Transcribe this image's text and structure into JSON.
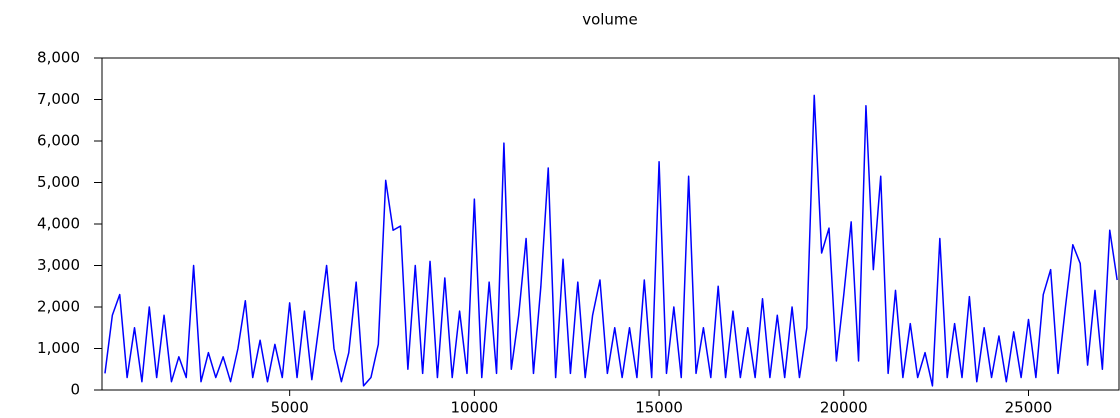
{
  "chart_data": {
    "type": "line",
    "title": "volume",
    "x": [
      0,
      200,
      400,
      600,
      800,
      1000,
      1200,
      1400,
      1600,
      1800,
      2000,
      2200,
      2400,
      2600,
      2800,
      3000,
      3200,
      3400,
      3600,
      3800,
      4000,
      4200,
      4400,
      4600,
      4800,
      5000,
      5200,
      5400,
      5600,
      5800,
      6000,
      6200,
      6400,
      6600,
      6800,
      7000,
      7200,
      7400,
      7600,
      7800,
      8000,
      8200,
      8400,
      8600,
      8800,
      9000,
      9200,
      9400,
      9600,
      9800,
      10000,
      10200,
      10400,
      10600,
      10800,
      11000,
      11200,
      11400,
      11600,
      11800,
      12000,
      12200,
      12400,
      12600,
      12800,
      13000,
      13200,
      13400,
      13600,
      13800,
      14000,
      14200,
      14400,
      14600,
      14800,
      15000,
      15200,
      15400,
      15600,
      15800,
      16000,
      16200,
      16400,
      16600,
      16800,
      17000,
      17200,
      17400,
      17600,
      17800,
      18000,
      18200,
      18400,
      18600,
      18800,
      19000,
      19200,
      19400,
      19600,
      19800,
      20000,
      20200,
      20400,
      20600,
      20800,
      21000,
      21200,
      21400,
      21600,
      21800,
      22000,
      22200,
      22400,
      22600,
      22800,
      23000,
      23200,
      23400,
      23600,
      23800,
      24000,
      24200,
      24400,
      24600,
      24800,
      25000,
      25200,
      25400,
      25600,
      25800,
      26000,
      26200,
      26400,
      26600,
      26800,
      27000,
      27200,
      27400
    ],
    "values": [
      400,
      1800,
      2300,
      300,
      1500,
      200,
      2000,
      300,
      1800,
      200,
      800,
      300,
      3000,
      200,
      900,
      300,
      800,
      200,
      1000,
      2150,
      300,
      1200,
      200,
      1100,
      300,
      2100,
      300,
      1900,
      250,
      1600,
      3000,
      1000,
      200,
      900,
      2600,
      100,
      300,
      1100,
      5050,
      3850,
      3950,
      500,
      3000,
      400,
      3100,
      300,
      2700,
      300,
      1900,
      400,
      4600,
      300,
      2600,
      400,
      5950,
      500,
      1800,
      3650,
      400,
      2500,
      5350,
      300,
      3150,
      400,
      2600,
      300,
      1800,
      2650,
      400,
      1500,
      300,
      1500,
      300,
      2650,
      300,
      5500,
      400,
      2000,
      300,
      5150,
      400,
      1500,
      300,
      2500,
      300,
      1900,
      300,
      1500,
      300,
      2200,
      300,
      1800,
      300,
      2000,
      300,
      1500,
      7100,
      3300,
      3900,
      700,
      2300,
      4050,
      700,
      6850,
      2900,
      5150,
      400,
      2400,
      300,
      1600,
      300,
      900,
      100,
      3650,
      300,
      1600,
      300,
      2250,
      200,
      1500,
      300,
      1300,
      200,
      1400,
      300,
      1700,
      300,
      2300,
      2900,
      400,
      2000,
      3500,
      3050,
      600,
      2400,
      500,
      3850,
      2650
    ],
    "color": "#0000ff",
    "xlim": [
      -80,
      27450
    ],
    "xticks": [
      5000,
      10000,
      15000,
      20000,
      25000
    ],
    "ylim": [
      0,
      8000
    ],
    "yticks": [
      0,
      {
        "value": 1000,
        "label": "1,000"
      },
      {
        "value": 2000,
        "label": "2,000"
      },
      {
        "value": 3000,
        "label": "3,000"
      },
      {
        "value": 4000,
        "label": "4,000"
      },
      {
        "value": 5000,
        "label": "5,000"
      },
      {
        "value": 6000,
        "label": "6,000"
      },
      {
        "value": 7000,
        "label": "7,000"
      },
      {
        "value": 8000,
        "label": "8,000"
      }
    ]
  }
}
